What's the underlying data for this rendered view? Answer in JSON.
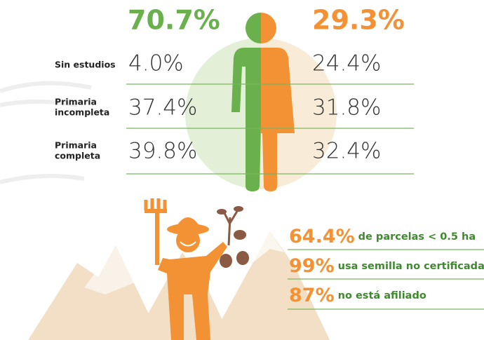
{
  "header": {
    "male_share": "70.7%",
    "female_share": "29.3%"
  },
  "education": {
    "rows": [
      {
        "label": [
          "Sin estudios"
        ],
        "male": "4.0%",
        "female": "24.4%"
      },
      {
        "label": [
          "Primaria",
          "incompleta"
        ],
        "male": "37.4%",
        "female": "31.8%"
      },
      {
        "label": [
          "Primaria",
          "completa"
        ],
        "male": "39.8%",
        "female": "32.4%"
      }
    ]
  },
  "stats": [
    {
      "value": "64.4%",
      "text": "de parcelas < 0.5 ha"
    },
    {
      "value": "99%",
      "text": "usa semilla no certificada"
    },
    {
      "value": "87%",
      "text": "no está afiliado"
    }
  ]
}
